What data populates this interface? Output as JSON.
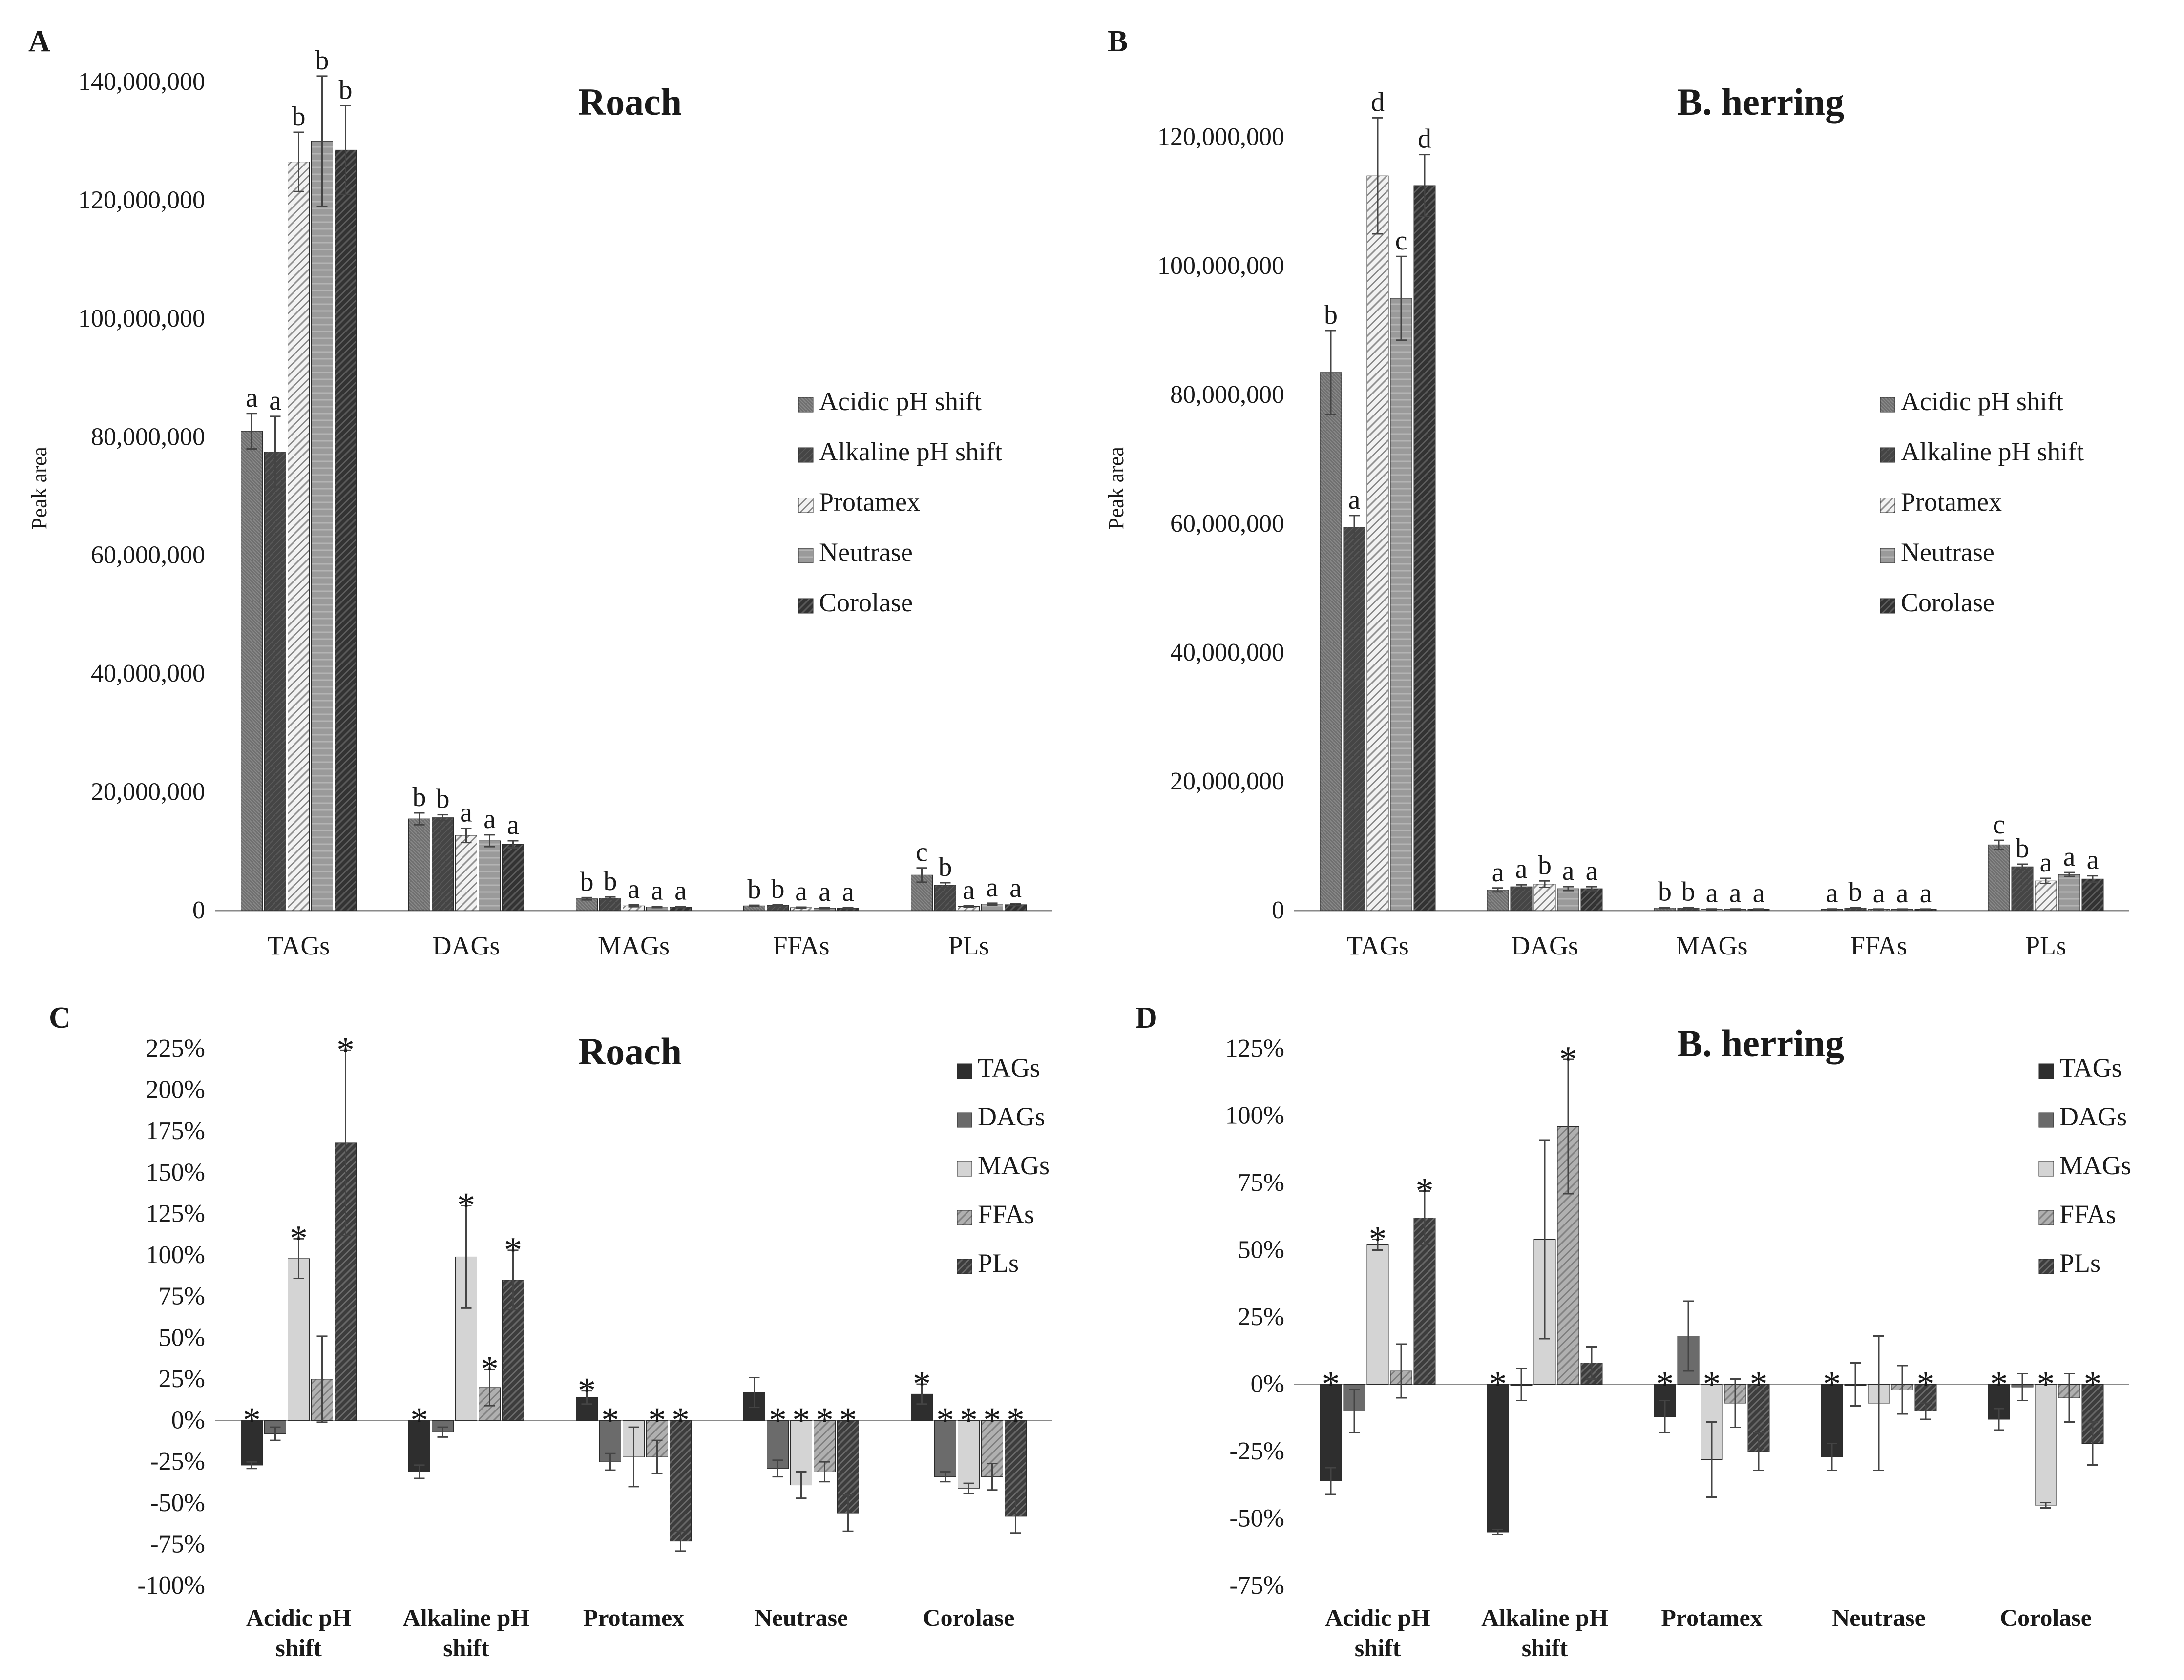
{
  "colors": {
    "acidic": "#6f6f6f",
    "alkaline": "#444444",
    "protamex": "#e4e4e4",
    "neutrase": "#9a9a9a",
    "corolase": "#3a3a3a",
    "tags": "#2e2e2e",
    "dags": "#6b6b6b",
    "mags": "#d2d2d2",
    "ffas": "#a8a8a8",
    "pls": "#4a4a4a",
    "axis": "#8a8a8a",
    "error": "#444444"
  },
  "chart_data": [
    {
      "panel": "A",
      "type": "bar",
      "title": "Roach",
      "ylabel": "Peak area",
      "xlabel": "",
      "ylim": [
        0,
        140000000
      ],
      "yticks": [
        0,
        20000000,
        40000000,
        60000000,
        80000000,
        100000000,
        120000000,
        140000000
      ],
      "ytick_labels": [
        "0",
        "20,000,000",
        "40,000,000",
        "60,000,000",
        "80,000,000",
        "100,000,000",
        "120,000,000",
        "140,000,000"
      ],
      "legend": "right",
      "categories": [
        "TAGs",
        "DAGs",
        "MAGs",
        "FFAs",
        "PLs"
      ],
      "series": [
        {
          "name": "Acidic pH shift",
          "key": "acidic",
          "values": [
            81000000,
            15500000,
            2000000,
            800000,
            6000000
          ],
          "errors": [
            3000000,
            1000000,
            200000,
            100000,
            1200000
          ],
          "letters": [
            "a",
            "b",
            "b",
            "b",
            "c"
          ]
        },
        {
          "name": "Alkaline pH shift",
          "key": "alkaline",
          "values": [
            77500000,
            15700000,
            2100000,
            900000,
            4300000
          ],
          "errors": [
            6000000,
            500000,
            200000,
            100000,
            400000
          ],
          "letters": [
            "a",
            "b",
            "b",
            "b",
            "b"
          ]
        },
        {
          "name": "Protamex",
          "key": "protamex",
          "values": [
            126500000,
            12700000,
            800000,
            500000,
            700000
          ],
          "errors": [
            5000000,
            1200000,
            150000,
            80000,
            100000
          ],
          "letters": [
            "b",
            "a",
            "a",
            "a",
            "a"
          ]
        },
        {
          "name": "Neutrase",
          "key": "neutrase",
          "values": [
            130000000,
            11800000,
            600000,
            400000,
            1100000
          ],
          "errors": [
            11000000,
            1000000,
            100000,
            80000,
            150000
          ],
          "letters": [
            "b",
            "a",
            "a",
            "a",
            "a"
          ]
        },
        {
          "name": "Corolase",
          "key": "corolase",
          "values": [
            128500000,
            11200000,
            600000,
            400000,
            1000000
          ],
          "errors": [
            7500000,
            600000,
            100000,
            80000,
            150000
          ],
          "letters": [
            "b",
            "a",
            "a",
            "a",
            "a"
          ]
        }
      ]
    },
    {
      "panel": "B",
      "type": "bar",
      "title": "B. herring",
      "ylabel": "Peak area",
      "xlabel": "",
      "ylim": [
        0,
        125000000
      ],
      "yticks": [
        0,
        20000000,
        40000000,
        60000000,
        80000000,
        100000000,
        120000000
      ],
      "ytick_labels": [
        "0",
        "20,000,000",
        "40,000,000",
        "60,000,000",
        "80,000,000",
        "100,000,000",
        "120,000,000"
      ],
      "legend": "right",
      "categories": [
        "TAGs",
        "DAGs",
        "MAGs",
        "FFAs",
        "PLs"
      ],
      "series": [
        {
          "name": "Acidic pH shift",
          "key": "acidic",
          "values": [
            83500000,
            3200000,
            400000,
            200000,
            10200000
          ],
          "errors": [
            6500000,
            300000,
            80000,
            50000,
            700000
          ],
          "letters": [
            "b",
            "a",
            "b",
            "a",
            "c"
          ]
        },
        {
          "name": "Alkaline pH shift",
          "key": "alkaline",
          "values": [
            59500000,
            3700000,
            400000,
            400000,
            6800000
          ],
          "errors": [
            1800000,
            300000,
            80000,
            60000,
            400000
          ],
          "letters": [
            "a",
            "a",
            "b",
            "b",
            "b"
          ]
        },
        {
          "name": "Protamex",
          "key": "protamex",
          "values": [
            114000000,
            4100000,
            200000,
            200000,
            4600000
          ],
          "errors": [
            9000000,
            500000,
            50000,
            40000,
            400000
          ],
          "letters": [
            "d",
            "b",
            "a",
            "a",
            "a"
          ]
        },
        {
          "name": "Neutrase",
          "key": "neutrase",
          "values": [
            95000000,
            3400000,
            200000,
            200000,
            5600000
          ],
          "errors": [
            6500000,
            300000,
            50000,
            40000,
            300000
          ],
          "letters": [
            "c",
            "a",
            "a",
            "a",
            "a"
          ]
        },
        {
          "name": "Corolase",
          "key": "corolase",
          "values": [
            112500000,
            3400000,
            200000,
            200000,
            4900000
          ],
          "errors": [
            4800000,
            300000,
            50000,
            40000,
            500000
          ],
          "letters": [
            "d",
            "a",
            "a",
            "a",
            "a"
          ]
        }
      ]
    },
    {
      "panel": "C",
      "type": "bar",
      "title": "Roach",
      "ylabel": "",
      "xlabel": "",
      "ylim": [
        -100,
        225
      ],
      "yticks": [
        -100,
        -75,
        -50,
        -25,
        0,
        25,
        50,
        75,
        100,
        125,
        150,
        175,
        200,
        225
      ],
      "ytick_labels": [
        "-100%",
        "-75%",
        "-50%",
        "-25%",
        "0%",
        "25%",
        "50%",
        "75%",
        "100%",
        "125%",
        "150%",
        "175%",
        "200%",
        "225%"
      ],
      "legend": "top-right",
      "categories": [
        "Acidic pH shift",
        "Alkaline pH shift",
        "Protamex",
        "Neutrase",
        "Corolase"
      ],
      "category_lines": [
        [
          "Acidic pH",
          "shift"
        ],
        [
          "Alkaline pH",
          "shift"
        ],
        [
          "Protamex"
        ],
        [
          "Neutrase"
        ],
        [
          "Corolase"
        ]
      ],
      "series": [
        {
          "name": "TAGs",
          "key": "tags",
          "values": [
            -27,
            -31,
            14,
            17,
            16
          ],
          "errors": [
            2,
            4,
            4,
            9,
            6
          ],
          "stars": [
            true,
            true,
            true,
            false,
            true
          ]
        },
        {
          "name": "DAGs",
          "key": "dags",
          "values": [
            -8,
            -7,
            -25,
            -29,
            -34
          ],
          "errors": [
            4,
            3,
            5,
            5,
            3
          ],
          "stars": [
            false,
            false,
            true,
            true,
            true
          ]
        },
        {
          "name": "MAGs",
          "key": "mags",
          "values": [
            98,
            99,
            -22,
            -39,
            -41
          ],
          "errors": [
            12,
            31,
            18,
            8,
            3
          ],
          "stars": [
            true,
            true,
            false,
            true,
            true
          ]
        },
        {
          "name": "FFAs",
          "key": "ffas",
          "values": [
            25,
            20,
            -22,
            -31,
            -34
          ],
          "errors": [
            26,
            11,
            10,
            6,
            8
          ],
          "stars": [
            false,
            true,
            true,
            true,
            true
          ]
        },
        {
          "name": "PLs",
          "key": "pls",
          "values": [
            168,
            85,
            -73,
            -56,
            -58
          ],
          "errors": [
            56,
            18,
            6,
            11,
            10
          ],
          "stars": [
            true,
            true,
            true,
            true,
            true
          ]
        }
      ]
    },
    {
      "panel": "D",
      "type": "bar",
      "title": "B. herring",
      "ylabel": "",
      "xlabel": "",
      "ylim": [
        -75,
        125
      ],
      "yticks": [
        -75,
        -50,
        -25,
        0,
        25,
        50,
        75,
        100,
        125
      ],
      "ytick_labels": [
        "-75%",
        "-50%",
        "-25%",
        "0%",
        "25%",
        "50%",
        "75%",
        "100%",
        "125%"
      ],
      "legend": "top-right",
      "categories": [
        "Acidic pH shift",
        "Alkaline pH shift",
        "Protamex",
        "Neutrase",
        "Corolase"
      ],
      "category_lines": [
        [
          "Acidic pH",
          "shift"
        ],
        [
          "Alkaline pH",
          "shift"
        ],
        [
          "Protamex"
        ],
        [
          "Neutrase"
        ],
        [
          "Corolase"
        ]
      ],
      "series": [
        {
          "name": "TAGs",
          "key": "tags",
          "values": [
            -36,
            -55,
            -12,
            -27,
            -13
          ],
          "errors": [
            5,
            1,
            6,
            5,
            4
          ],
          "stars": [
            true,
            true,
            true,
            true,
            true
          ]
        },
        {
          "name": "DAGs",
          "key": "dags",
          "values": [
            -10,
            0,
            18,
            0,
            -1
          ],
          "errors": [
            8,
            6,
            13,
            8,
            5
          ],
          "stars": [
            false,
            false,
            false,
            false,
            false
          ]
        },
        {
          "name": "MAGs",
          "key": "mags",
          "values": [
            52,
            54,
            -28,
            -7,
            -45
          ],
          "errors": [
            2,
            37,
            14,
            25,
            1
          ],
          "stars": [
            true,
            false,
            true,
            false,
            true
          ]
        },
        {
          "name": "FFAs",
          "key": "ffas",
          "values": [
            5,
            96,
            -7,
            -2,
            -5
          ],
          "errors": [
            10,
            25,
            9,
            9,
            9
          ],
          "stars": [
            false,
            true,
            false,
            false,
            false
          ]
        },
        {
          "name": "PLs",
          "key": "pls",
          "values": [
            62,
            8,
            -25,
            -10,
            -22
          ],
          "errors": [
            10,
            6,
            7,
            3,
            8
          ],
          "stars": [
            true,
            false,
            true,
            true,
            true
          ]
        }
      ]
    }
  ]
}
